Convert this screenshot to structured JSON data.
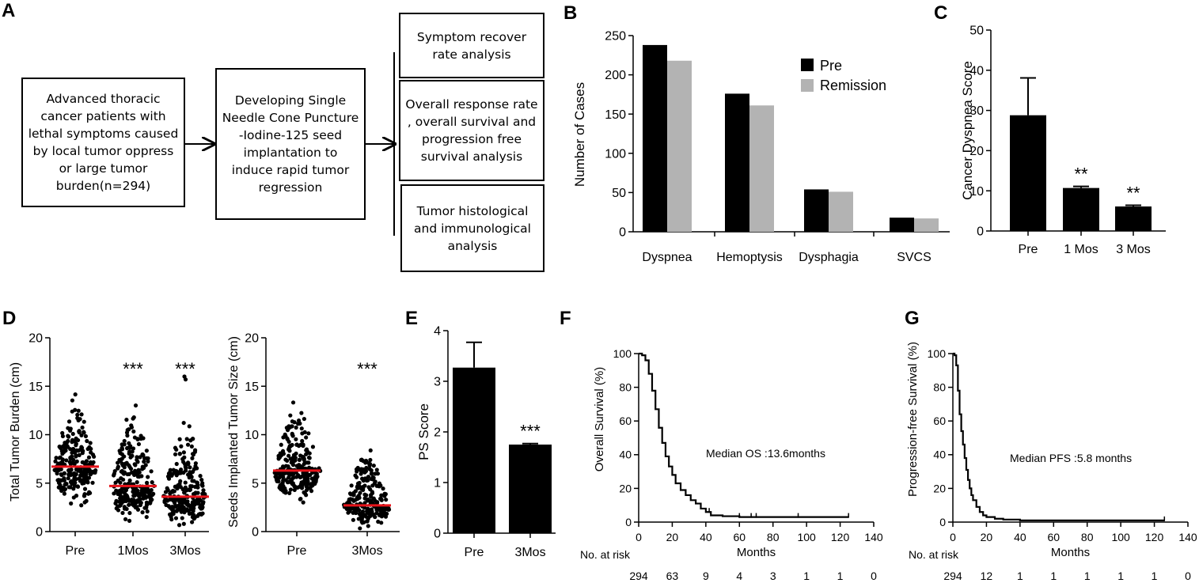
{
  "panels": {
    "A": {
      "letter": "A",
      "boxes": [
        "Advanced thoracic cancer patients with lethal symptoms caused by local tumor oppress or large tumor burden(n=294)",
        "Developing Single Needle Cone Puncture -Iodine-125 seed implantation to induce rapid tumor regression",
        "Symptom recover rate analysis",
        "Overall response rate , overall survival and progression free survival analysis",
        "Tumor histological and immunological analysis"
      ]
    },
    "B": {
      "letter": "B"
    },
    "C": {
      "letter": "C"
    },
    "D": {
      "letter": "D"
    },
    "E": {
      "letter": "E"
    },
    "F": {
      "letter": "F"
    },
    "G": {
      "letter": "G"
    }
  },
  "colors": {
    "pre": "#000000",
    "remission": "#b3b3b3",
    "median_line": "#e8141b"
  },
  "chart_data": [
    {
      "id": "B",
      "type": "bar",
      "title": "",
      "xlabel": "",
      "ylabel": "Number of Cases",
      "categories": [
        "Dyspnea",
        "Hemoptysis",
        "Dysphagia",
        "SVCS"
      ],
      "series": [
        {
          "name": "Pre",
          "values": [
            238,
            176,
            54,
            18
          ]
        },
        {
          "name": "Remission",
          "values": [
            218,
            161,
            51,
            17
          ]
        }
      ],
      "ylim": [
        0,
        250
      ],
      "yticks": [
        0,
        50,
        100,
        150,
        200,
        250
      ],
      "legend": "top-right"
    },
    {
      "id": "C",
      "type": "bar",
      "ylabel": "Cancer Dyspnea Score",
      "categories": [
        "Pre",
        "1 Mos",
        "3 Mos"
      ],
      "values": [
        28.8,
        10.7,
        6.1
      ],
      "errors": [
        9.3,
        0.4,
        0.3
      ],
      "annotations": [
        "",
        "**",
        "**"
      ],
      "ylim": [
        0,
        50
      ],
      "yticks": [
        0,
        10,
        20,
        30,
        40,
        50
      ]
    },
    {
      "id": "D1",
      "type": "scatter",
      "ylabel": "Total Tumor Burden (cm)",
      "categories": [
        "Pre",
        "1Mos",
        "3Mos"
      ],
      "medians": [
        6.7,
        4.7,
        3.6
      ],
      "annotations": [
        "",
        "***",
        "***"
      ],
      "ylim": [
        0,
        20
      ],
      "yticks": [
        0,
        5,
        10,
        15,
        20
      ]
    },
    {
      "id": "D2",
      "type": "scatter",
      "ylabel": "Seeds Implanted Tumor Size (cm)",
      "categories": [
        "Pre",
        "3Mos"
      ],
      "medians": [
        6.3,
        2.7
      ],
      "annotations": [
        "",
        "***"
      ],
      "ylim": [
        0,
        20
      ],
      "yticks": [
        0,
        5,
        10,
        15,
        20
      ]
    },
    {
      "id": "E",
      "type": "bar",
      "ylabel": "PS Score",
      "categories": [
        "Pre",
        "3Mos"
      ],
      "values": [
        3.27,
        1.75
      ],
      "errors": [
        0.5,
        0.02
      ],
      "annotations": [
        "",
        "***"
      ],
      "ylim": [
        0,
        4
      ],
      "yticks": [
        0,
        1,
        2,
        3,
        4
      ]
    },
    {
      "id": "F",
      "type": "line",
      "ylabel": "Overall Survival (%)",
      "xlabel": "Months",
      "annotation": "Median OS :13.6months",
      "xlim": [
        0,
        140
      ],
      "xticks": [
        0,
        20,
        40,
        60,
        80,
        100,
        120,
        140
      ],
      "ylim": [
        0,
        100
      ],
      "yticks": [
        0,
        20,
        40,
        60,
        80,
        100
      ],
      "x": [
        0,
        2,
        4,
        6,
        8,
        10,
        12,
        14,
        16,
        18,
        20,
        22,
        25,
        28,
        31,
        34,
        37,
        40,
        43,
        50,
        60,
        70,
        80,
        90,
        100,
        110,
        120,
        125
      ],
      "y": [
        100,
        99,
        96,
        88,
        78,
        67,
        56,
        47,
        39,
        33,
        28,
        23,
        19,
        16,
        13,
        11,
        8,
        6,
        4,
        3.5,
        3,
        3,
        3,
        3,
        3,
        3,
        3,
        3
      ],
      "censor_x": [
        42,
        60,
        67,
        70,
        95,
        125
      ],
      "at_risk_label": "No. at  risk",
      "at_risk": [
        "294",
        "63",
        "9",
        "4",
        "3",
        "1",
        "1",
        "0"
      ]
    },
    {
      "id": "G",
      "type": "line",
      "ylabel": "Progression-free Survival (%)",
      "xlabel": "Months",
      "annotation": "Median PFS :5.8 months",
      "xlim": [
        0,
        140
      ],
      "xticks": [
        0,
        20,
        40,
        60,
        80,
        100,
        120,
        140
      ],
      "ylim": [
        0,
        100
      ],
      "yticks": [
        0,
        20,
        40,
        60,
        80,
        100
      ],
      "x": [
        0,
        1,
        2,
        3,
        4,
        5,
        6,
        7,
        8,
        9,
        10,
        11,
        12,
        14,
        16,
        18,
        20,
        25,
        30,
        40,
        126
      ],
      "y": [
        100,
        99,
        93,
        78,
        64,
        54,
        46,
        38,
        31,
        25,
        20,
        16,
        13,
        9,
        6,
        4,
        3,
        2,
        1.5,
        1,
        1
      ],
      "censor_x": [
        126
      ],
      "at_risk_label": "No. at  risk",
      "at_risk": [
        "294",
        "12",
        "1",
        "1",
        "1",
        "1",
        "1",
        "0"
      ]
    }
  ]
}
